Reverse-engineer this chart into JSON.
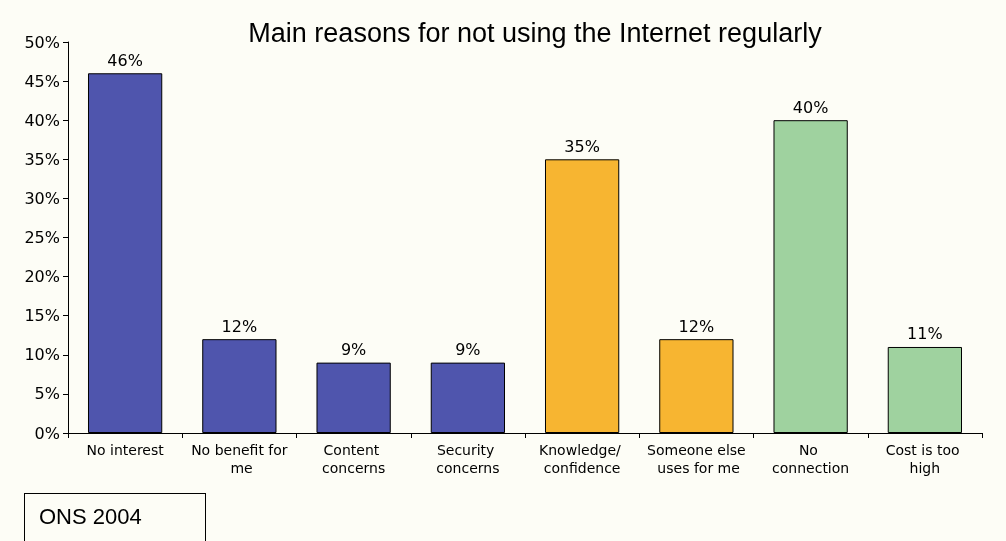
{
  "chart_data": {
    "type": "bar",
    "title": "Main reasons for not using the Internet regularly",
    "categories": [
      "No interest",
      "No benefit for me",
      "Content concerns",
      "Security concerns",
      "Knowledge/ confidence",
      "Someone else uses for me",
      "No connection",
      "Cost is too high"
    ],
    "values": [
      46,
      12,
      9,
      9,
      35,
      12,
      40,
      11
    ],
    "colors": [
      "#4f55ad",
      "#4f55ad",
      "#4f55ad",
      "#4f55ad",
      "#f7b531",
      "#f7b531",
      "#9fd29f",
      "#9fd29f"
    ],
    "value_labels": [
      "46%",
      "12%",
      "9%",
      "9%",
      "35%",
      "12%",
      "40%",
      "11%"
    ],
    "ylim": [
      0,
      50
    ],
    "yticks": [
      {
        "value": 0,
        "label": "0%"
      },
      {
        "value": 5,
        "label": "5%"
      },
      {
        "value": 10,
        "label": "10%"
      },
      {
        "value": 15,
        "label": "15%"
      },
      {
        "value": 20,
        "label": "20%"
      },
      {
        "value": 25,
        "label": "25%"
      },
      {
        "value": 30,
        "label": "30%"
      },
      {
        "value": 35,
        "label": "35%"
      },
      {
        "value": 40,
        "label": "40%"
      },
      {
        "value": 45,
        "label": "45%"
      },
      {
        "value": 50,
        "label": "50%"
      }
    ],
    "annotations": [
      "ONS 2004"
    ],
    "grid": false
  }
}
